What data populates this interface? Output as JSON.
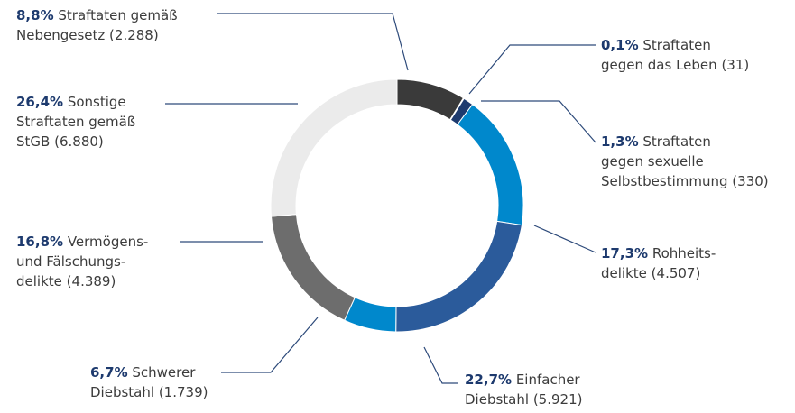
{
  "chart_data": {
    "type": "donut",
    "categories": [
      "Straftaten gemäß\nNebengesetz",
      "Straftaten\ngegen das Leben",
      "Straftaten\ngegen sexuelle\nSelbstbestimmung",
      "Rohheits-\ndelikte",
      "Einfacher\nDiebstahl",
      "Schwerer\nDiebstahl",
      "Vermögens-\nund Fälschungs-\ndelikte",
      "Sonstige\nStraftaten gemäß\nStGB"
    ],
    "values": [
      8.8,
      0.1,
      1.3,
      17.3,
      22.7,
      6.7,
      16.8,
      26.4
    ],
    "value_labels": [
      "8,8%",
      "0,1%",
      "1,3%",
      "17,3%",
      "22,7%",
      "6,7%",
      "16,8%",
      "26,4%"
    ],
    "counts": [
      {
        "value": 2288,
        "label": "(2.288)"
      },
      {
        "value": 31,
        "label": "(31)"
      },
      {
        "value": 330,
        "label": "(330)"
      },
      {
        "value": 4507,
        "label": "(4.507)"
      },
      {
        "value": 5921,
        "label": "(5.921)"
      },
      {
        "value": 1739,
        "label": "(1.739)"
      },
      {
        "value": 4389,
        "label": "(4.389)"
      },
      {
        "value": 6880,
        "label": "(6.880)"
      }
    ],
    "colors": [
      "#3a3a3a",
      "#8c8c8c",
      "#1d3a6e",
      "#0088cc",
      "#2b5b9b",
      "#0088cc",
      "#6d6d6d",
      "#ebebeb"
    ]
  }
}
